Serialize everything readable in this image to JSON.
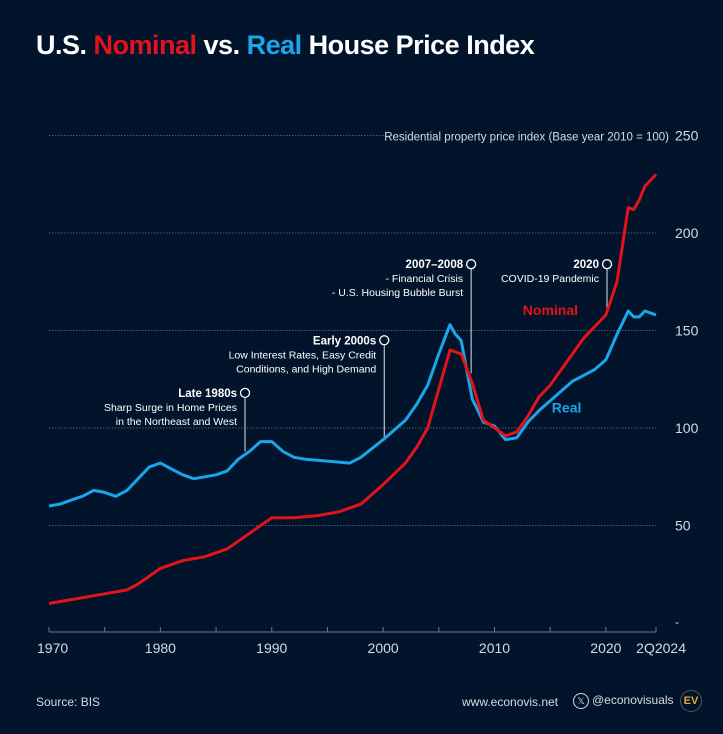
{
  "title": {
    "part1": "U.S. ",
    "nominal": "Nominal",
    "part2": " vs. ",
    "real": "Real",
    "part3": " House Price Index"
  },
  "chart_data": {
    "type": "line",
    "ylabel": "Residential property price index (Base year 2010 = 100)",
    "ylim": [
      0,
      250
    ],
    "yticks": [
      250,
      200,
      150,
      100,
      50
    ],
    "ytick_zero_label": "-",
    "xlim": [
      1970,
      2024.5
    ],
    "xticks": [
      {
        "v": 1970,
        "label": "1970"
      },
      {
        "v": 1980,
        "label": "1980"
      },
      {
        "v": 1990,
        "label": "1990"
      },
      {
        "v": 2000,
        "label": "2000"
      },
      {
        "v": 2010,
        "label": "2010"
      },
      {
        "v": 2020,
        "label": "2020"
      },
      {
        "v": 2024.5,
        "label": "2Q2024"
      }
    ],
    "grid": true,
    "colors": {
      "nominal": "#e3121b",
      "real": "#1ba6e8",
      "background": "#01142c"
    },
    "series": [
      {
        "name": "Nominal",
        "color": "#e3121b",
        "points": [
          [
            1970,
            10
          ],
          [
            1972,
            12
          ],
          [
            1975,
            15
          ],
          [
            1977,
            17
          ],
          [
            1978,
            20
          ],
          [
            1980,
            28
          ],
          [
            1982,
            32
          ],
          [
            1984,
            34
          ],
          [
            1986,
            38
          ],
          [
            1988,
            46
          ],
          [
            1990,
            54
          ],
          [
            1992,
            54
          ],
          [
            1994,
            55
          ],
          [
            1996,
            57
          ],
          [
            1998,
            61
          ],
          [
            2000,
            71
          ],
          [
            2002,
            82
          ],
          [
            2003,
            90
          ],
          [
            2004,
            100
          ],
          [
            2005,
            120
          ],
          [
            2006,
            140
          ],
          [
            2007,
            138
          ],
          [
            2008,
            123
          ],
          [
            2009,
            104
          ],
          [
            2010,
            100
          ],
          [
            2011,
            96
          ],
          [
            2012,
            98
          ],
          [
            2013,
            106
          ],
          [
            2014,
            116
          ],
          [
            2015,
            122
          ],
          [
            2016,
            130
          ],
          [
            2017,
            138
          ],
          [
            2018,
            146
          ],
          [
            2019,
            152
          ],
          [
            2020,
            158
          ],
          [
            2021,
            175
          ],
          [
            2022,
            213
          ],
          [
            2022.5,
            212
          ],
          [
            2023,
            217
          ],
          [
            2023.5,
            224
          ],
          [
            2024.5,
            230
          ]
        ]
      },
      {
        "name": "Real",
        "color": "#1ba6e8",
        "points": [
          [
            1970,
            60
          ],
          [
            1971,
            61
          ],
          [
            1972,
            63
          ],
          [
            1973,
            65
          ],
          [
            1974,
            68
          ],
          [
            1975,
            67
          ],
          [
            1976,
            65
          ],
          [
            1977,
            68
          ],
          [
            1978,
            74
          ],
          [
            1979,
            80
          ],
          [
            1980,
            82
          ],
          [
            1981,
            79
          ],
          [
            1982,
            76
          ],
          [
            1983,
            74
          ],
          [
            1984,
            75
          ],
          [
            1985,
            76
          ],
          [
            1986,
            78
          ],
          [
            1987,
            84
          ],
          [
            1988,
            88
          ],
          [
            1989,
            93
          ],
          [
            1990,
            93
          ],
          [
            1991,
            88
          ],
          [
            1992,
            85
          ],
          [
            1993,
            84
          ],
          [
            1995,
            83
          ],
          [
            1997,
            82
          ],
          [
            1998,
            85
          ],
          [
            2000,
            94
          ],
          [
            2002,
            104
          ],
          [
            2003,
            112
          ],
          [
            2004,
            122
          ],
          [
            2005,
            138
          ],
          [
            2006,
            153
          ],
          [
            2006.5,
            148
          ],
          [
            2007,
            145
          ],
          [
            2008,
            115
          ],
          [
            2009,
            103
          ],
          [
            2010,
            101
          ],
          [
            2011,
            94
          ],
          [
            2012,
            95
          ],
          [
            2013,
            103
          ],
          [
            2014,
            109
          ],
          [
            2015,
            114
          ],
          [
            2016,
            119
          ],
          [
            2017,
            124
          ],
          [
            2018,
            127
          ],
          [
            2019,
            130
          ],
          [
            2020,
            135
          ],
          [
            2021,
            148
          ],
          [
            2022,
            160
          ],
          [
            2022.5,
            157
          ],
          [
            2023,
            157
          ],
          [
            2023.5,
            160
          ],
          [
            2024.5,
            158
          ]
        ]
      }
    ],
    "series_labels": [
      {
        "text": "Nominal",
        "x": 2017.5,
        "y": 158
      },
      {
        "text": "Real",
        "x": 2017.8,
        "y": 108
      }
    ],
    "annotations": [
      {
        "title": "Late 1980s",
        "lines": [
          "Sharp Surge in Home Prices",
          "in the Northeast and West"
        ],
        "x": 1987.6,
        "y_top": 118,
        "y_end": 88
      },
      {
        "title": "Early 2000s",
        "lines": [
          "Low Interest Rates, Easy Credit",
          "Conditions, and High Demand"
        ],
        "x": 2000.1,
        "y_top": 145,
        "y_end": 94
      },
      {
        "title": "2007–2008",
        "lines": [
          "- Financial Crisis",
          "- U.S. Housing Bubble Burst"
        ],
        "x": 2007.9,
        "y_top": 184,
        "y_end": 128
      },
      {
        "title": "2020",
        "lines": [
          "COVID-19 Pandemic"
        ],
        "x": 2020.1,
        "y_top": 184,
        "y_end": 159
      }
    ]
  },
  "footer": {
    "source": "Source: BIS",
    "website": "www.econovis.net",
    "x_icon": "x-logo-icon",
    "handle": "@econovisuals",
    "logo": "EV"
  }
}
